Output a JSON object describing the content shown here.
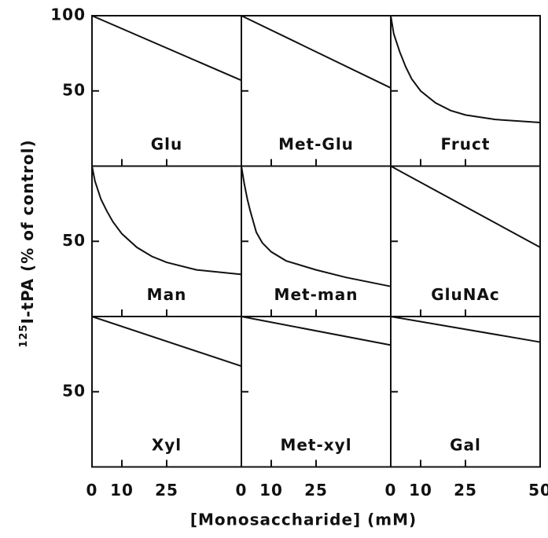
{
  "chart_data": [
    {
      "type": "line",
      "title": "Glu",
      "x": [
        0,
        50
      ],
      "values": [
        100,
        57
      ],
      "xlim": [
        0,
        50
      ],
      "ylim": [
        0,
        100
      ],
      "xticks": [
        0,
        10,
        25,
        50
      ],
      "yticks": [
        50,
        100
      ]
    },
    {
      "type": "line",
      "title": "Met-Glu",
      "x": [
        0,
        50
      ],
      "values": [
        100,
        52
      ],
      "xlim": [
        0,
        50
      ],
      "ylim": [
        0,
        100
      ],
      "xticks": [
        0,
        10,
        25,
        50
      ],
      "yticks": [
        50,
        100
      ]
    },
    {
      "type": "line",
      "title": "Fruct",
      "x": [
        0,
        1,
        3,
        5,
        7,
        10,
        15,
        20,
        25,
        35,
        50
      ],
      "values": [
        100,
        88,
        76,
        66,
        58,
        50,
        42,
        37,
        34,
        31,
        29
      ],
      "xlim": [
        0,
        50
      ],
      "ylim": [
        0,
        100
      ],
      "xticks": [
        0,
        10,
        25,
        50
      ],
      "yticks": [
        50,
        100
      ]
    },
    {
      "type": "line",
      "title": "Man",
      "x": [
        0,
        1,
        3,
        5,
        7,
        10,
        15,
        20,
        25,
        35,
        50
      ],
      "values": [
        100,
        90,
        78,
        70,
        63,
        55,
        46,
        40,
        36,
        31,
        28
      ],
      "xlim": [
        0,
        50
      ],
      "ylim": [
        0,
        100
      ],
      "xticks": [
        0,
        10,
        25,
        50
      ],
      "yticks": [
        50
      ]
    },
    {
      "type": "line",
      "title": "Met-man",
      "x": [
        0,
        1,
        2,
        3,
        5,
        7,
        10,
        15,
        25,
        35,
        50
      ],
      "values": [
        100,
        88,
        78,
        70,
        56,
        49,
        43,
        37,
        31,
        26,
        20
      ],
      "xlim": [
        0,
        50
      ],
      "ylim": [
        0,
        100
      ],
      "xticks": [
        0,
        10,
        25,
        50
      ],
      "yticks": [
        50
      ]
    },
    {
      "type": "line",
      "title": "GluNAc",
      "x": [
        0,
        50
      ],
      "values": [
        100,
        46
      ],
      "xlim": [
        0,
        50
      ],
      "ylim": [
        0,
        100
      ],
      "xticks": [
        0,
        10,
        25,
        50
      ],
      "yticks": [
        50
      ]
    },
    {
      "type": "line",
      "title": "Xyl",
      "x": [
        0,
        50
      ],
      "values": [
        100,
        67
      ],
      "xlim": [
        0,
        50
      ],
      "ylim": [
        0,
        100
      ],
      "xticks": [
        0,
        10,
        25,
        50
      ],
      "yticks": [
        50
      ]
    },
    {
      "type": "line",
      "title": "Met-xyl",
      "x": [
        0,
        50
      ],
      "values": [
        100,
        81
      ],
      "xlim": [
        0,
        50
      ],
      "ylim": [
        0,
        100
      ],
      "xticks": [
        0,
        10,
        25,
        50
      ],
      "yticks": [
        50
      ]
    },
    {
      "type": "line",
      "title": "Gal",
      "x": [
        0,
        50
      ],
      "values": [
        100,
        83
      ],
      "xlim": [
        0,
        50
      ],
      "ylim": [
        0,
        100
      ],
      "xticks": [
        0,
        10,
        25,
        50
      ],
      "yticks": [
        50
      ]
    }
  ],
  "xlabel": "[Monosaccharide] (mM)",
  "ylabel_sup": "125",
  "ylabel": "I-tPA (% of control)"
}
